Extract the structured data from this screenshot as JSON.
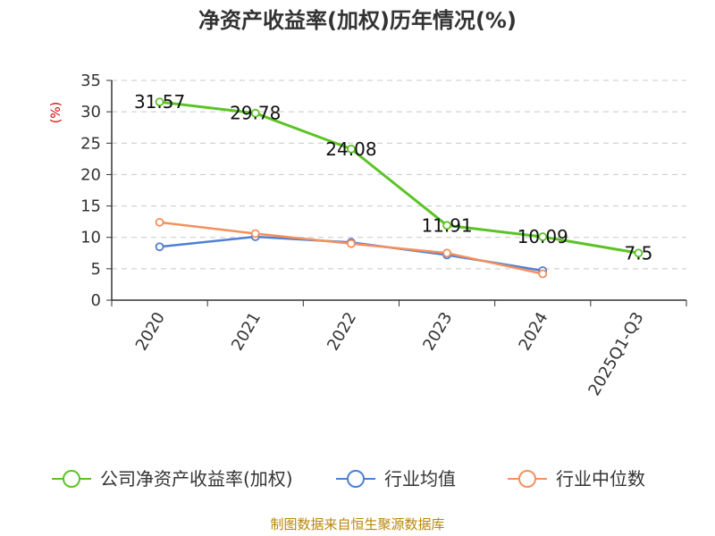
{
  "chart_data": {
    "type": "line",
    "title": "净资产收益率(加权)历年情况(%)",
    "ylabel": "(%)",
    "categories": [
      "2020",
      "2021",
      "2022",
      "2023",
      "2024",
      "2025Q1-Q3"
    ],
    "ylim": [
      0,
      35
    ],
    "yticks": [
      0,
      5,
      10,
      15,
      20,
      25,
      30,
      35
    ],
    "grid": true,
    "legend_position": "bottom",
    "series": [
      {
        "name": "公司净资产收益率(加权)",
        "color": "#5cc326",
        "values": [
          31.57,
          29.78,
          24.08,
          11.91,
          10.09,
          7.5
        ],
        "labels": [
          "31.57",
          "29.78",
          "24.08",
          "11.91",
          "10.09",
          "7.5"
        ]
      },
      {
        "name": "行业均值",
        "color": "#4f7fd3",
        "values": [
          8.5,
          10.1,
          9.2,
          7.2,
          4.7,
          null
        ]
      },
      {
        "name": "行业中位数",
        "color": "#f4905c",
        "values": [
          12.4,
          10.6,
          9.0,
          7.5,
          4.2,
          null
        ]
      }
    ]
  },
  "footer": {
    "source": "制图数据来自恒生聚源数据库"
  }
}
